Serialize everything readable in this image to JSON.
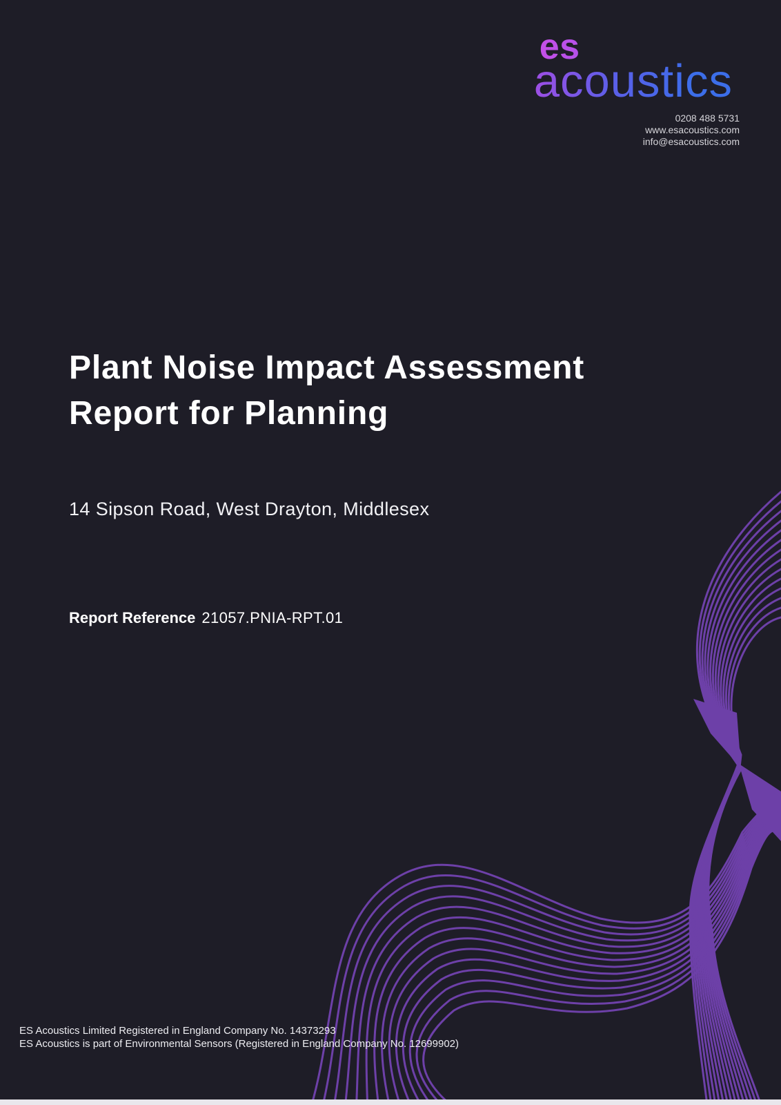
{
  "page": {
    "background_color": "#1e1d27",
    "bottom_strip_color": "#e9e7ec"
  },
  "logo": {
    "part1": "es",
    "part2": "acoustics",
    "part1_gradient": [
      "#c84fe8",
      "#7b58ec"
    ],
    "part2_gradient": [
      "#a04ee4",
      "#3c6ee9"
    ]
  },
  "contact": {
    "phone": "0208 488 5731",
    "website": "www.esacoustics.com",
    "email": "info@esacoustics.com"
  },
  "title": {
    "line1": "Plant Noise Impact Assessment",
    "line2": "Report for Planning"
  },
  "site_address": "14 Sipson Road, West Drayton, Middlesex",
  "report_reference": {
    "label": "Report Reference",
    "value": "21057.PNIA-RPT.01"
  },
  "footer": {
    "line1": "ES Acoustics Limited Registered in England Company No. 14373293",
    "line2": "ES Acoustics is part of Environmental Sensors (Registered in England Company No. 12699902)"
  },
  "decor": {
    "wave_color": "#6d40a8",
    "line_count": 14,
    "line_width": 3
  }
}
